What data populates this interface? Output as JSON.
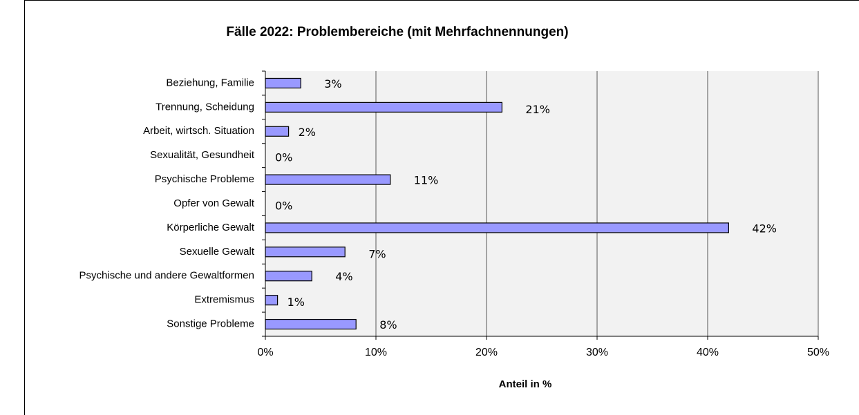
{
  "chart_data": {
    "type": "bar",
    "orientation": "horizontal",
    "title": "Fälle 2022: Problembereiche (mit Mehrfachnennungen)",
    "xlabel": "Anteil in %",
    "categories": [
      "Beziehung, Familie",
      "Trennung, Scheidung",
      "Arbeit, wirtsch. Situation",
      "Sexualität, Gesundheit",
      "Psychische Probleme",
      "Opfer von Gewalt",
      "Körperliche Gewalt",
      "Sexuelle Gewalt",
      "Psychische und andere Gewaltformen",
      "Extremismus",
      "Sonstige Probleme"
    ],
    "values": [
      3.2,
      21.4,
      2.1,
      0,
      11.3,
      0,
      41.9,
      7.2,
      4.2,
      1.1,
      8.2
    ],
    "value_labels": [
      "3%",
      "21%",
      "2%",
      "0%",
      "11%",
      "0%",
      "42%",
      "7%",
      "4%",
      "1%",
      "8%"
    ],
    "color": "#9999ff",
    "xlim": [
      0,
      50
    ],
    "xticks": [
      {
        "value": 0,
        "label": "0%"
      },
      {
        "value": 10,
        "label": "10%"
      },
      {
        "value": 20,
        "label": "20%"
      },
      {
        "value": 30,
        "label": "30%"
      },
      {
        "value": 40,
        "label": "40%"
      },
      {
        "value": 50,
        "label": "50%"
      }
    ],
    "grid": true
  }
}
